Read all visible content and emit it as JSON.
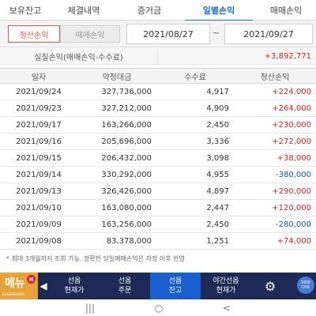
{
  "top_tabs": [
    {
      "label": "보유잔고",
      "active": false
    },
    {
      "label": "체결내역",
      "active": false
    },
    {
      "label": "증거금",
      "active": false
    },
    {
      "label": "일별손익",
      "active": true
    },
    {
      "label": "매매손익",
      "active": false
    }
  ],
  "filter": {
    "seg_settlement": "정산손익",
    "seg_trade": "매매손익",
    "date_from": "2021/08/27",
    "tilde": "~",
    "date_to": "2021/09/27"
  },
  "summary": {
    "label": "실질손익(매매손익-수수료)",
    "value": "+3,892,771"
  },
  "table": {
    "headers": [
      "일자",
      "약정대금",
      "수수료",
      "정산손익"
    ],
    "rows": [
      {
        "date": "2021/09/24",
        "amount": "327,736,000",
        "fee": "4,917",
        "pnl": "+224,000",
        "sign": "pos"
      },
      {
        "date": "2021/09/23",
        "amount": "327,212,000",
        "fee": "4,909",
        "pnl": "+264,000",
        "sign": "pos"
      },
      {
        "date": "2021/09/17",
        "amount": "163,266,000",
        "fee": "2,450",
        "pnl": "+230,000",
        "sign": "pos"
      },
      {
        "date": "2021/09/16",
        "amount": "205,696,000",
        "fee": "3,336",
        "pnl": "+272,000",
        "sign": "pos"
      },
      {
        "date": "2021/09/15",
        "amount": "206,432,000",
        "fee": "3,098",
        "pnl": "+38,000",
        "sign": "pos"
      },
      {
        "date": "2021/09/14",
        "amount": "330,292,000",
        "fee": "4,955",
        "pnl": "-380,000",
        "sign": "neg"
      },
      {
        "date": "2021/09/13",
        "amount": "326,426,000",
        "fee": "4,897",
        "pnl": "+290,000",
        "sign": "pos"
      },
      {
        "date": "2021/09/10",
        "amount": "163,080,000",
        "fee": "2,447",
        "pnl": "+120,000",
        "sign": "pos"
      },
      {
        "date": "2021/09/09",
        "amount": "163,256,000",
        "fee": "2,450",
        "pnl": "-280,000",
        "sign": "neg"
      },
      {
        "date": "2021/09/08",
        "amount": "83,378,000",
        "fee": "1,251",
        "pnl": "+74,000",
        "sign": "pos"
      }
    ]
  },
  "footnote": "* 최대 3개월까지 조회 가능. 정확한 당일매매손익은 자정 이후 반영",
  "bottom_nav": {
    "logo_text": "메뉴",
    "logo_badge": "N",
    "logo_sub": "EUGENEISMC",
    "prev_arrow": "◀",
    "items": [
      {
        "label": "선옵\n현재가",
        "active": false
      },
      {
        "label": "선옵\n주문",
        "active": false
      },
      {
        "label": "선옵\n잔고",
        "active": true
      },
      {
        "label": "야간선옵\n현재가",
        "active": false
      }
    ],
    "gear": "⚙",
    "side_button": "SIDE\nCHK"
  },
  "system_nav": {
    "recents": "|||",
    "home": "○",
    "back": "<"
  },
  "colors": {
    "accent": "#1a6fd8",
    "positive": "#e02020",
    "negative": "#1a4fd0",
    "nav_bg": "#1c2a55",
    "nav_active": "#1a5fd0"
  }
}
